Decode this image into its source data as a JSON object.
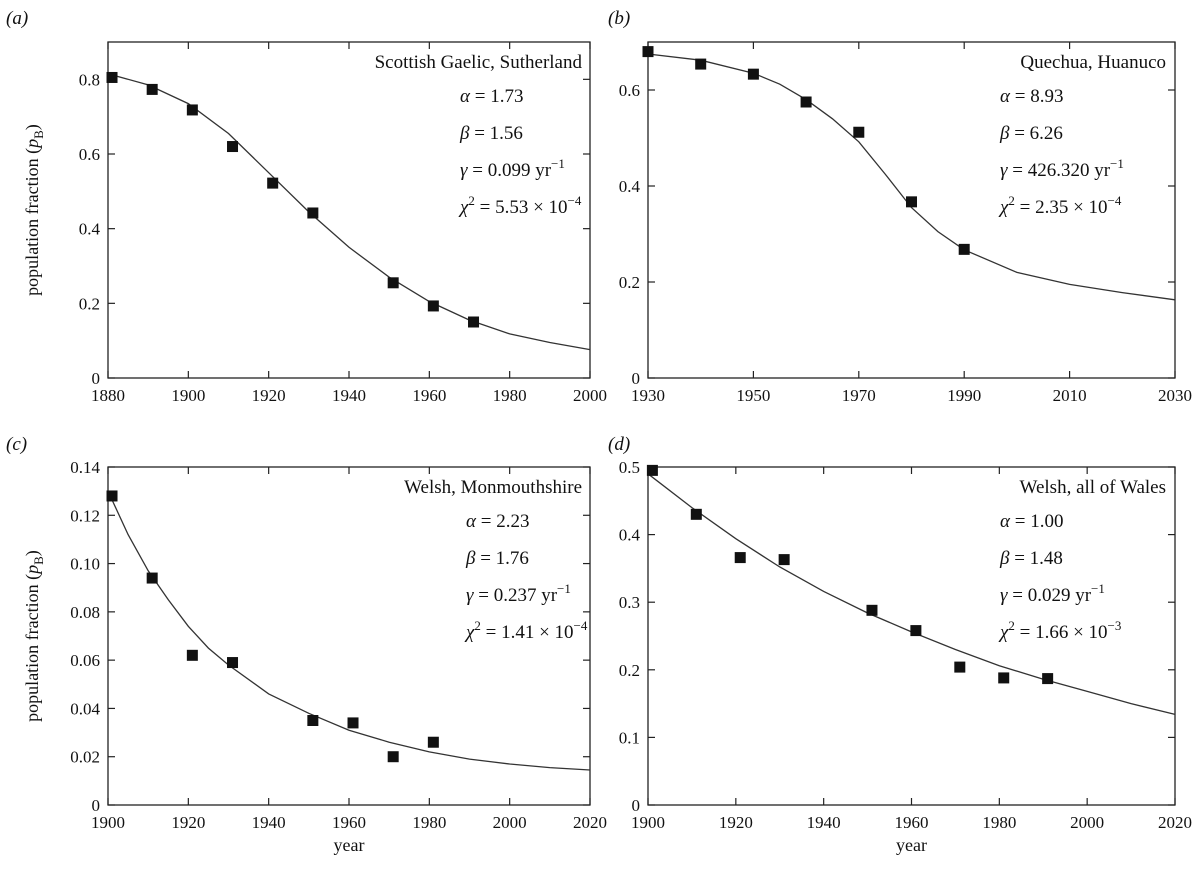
{
  "chart_data": [
    {
      "type": "scatter",
      "panel_label": "(a)",
      "title": "Scottish Gaelic, Sutherland",
      "xlabel": "",
      "ylabel": "population fraction (p_B)",
      "ylabel_text": "population fraction (",
      "ylabel_var": "p",
      "ylabel_sub": "B",
      "ylabel_close": ")",
      "xlim": [
        1880,
        2000
      ],
      "ylim": [
        0,
        0.9
      ],
      "xticks": [
        1880,
        1900,
        1920,
        1940,
        1960,
        1980,
        2000
      ],
      "xtick_labels": [
        "1880",
        "1900",
        "1920",
        "1940",
        "1960",
        "1980",
        "2000"
      ],
      "yticks": [
        0,
        0.2,
        0.4,
        0.6,
        0.8
      ],
      "ytick_labels": [
        "0",
        "0.2",
        "0.4",
        "0.6",
        "0.8"
      ],
      "series": [
        {
          "x": [
            1881,
            1891,
            1901,
            1911,
            1921,
            1931,
            1951,
            1961,
            1971
          ],
          "y": [
            0.805,
            0.773,
            0.718,
            0.62,
            0.522,
            0.442,
            0.255,
            0.193,
            0.15
          ]
        }
      ],
      "fit_curve": {
        "x": [
          1880,
          1890,
          1900,
          1910,
          1920,
          1930,
          1940,
          1950,
          1960,
          1970,
          1980,
          1990,
          2000
        ],
        "y": [
          0.815,
          0.785,
          0.735,
          0.655,
          0.55,
          0.445,
          0.35,
          0.27,
          0.205,
          0.155,
          0.118,
          0.095,
          0.076
        ]
      },
      "params": [
        {
          "sym": "α",
          "rest": " = 1.73",
          "sup": ""
        },
        {
          "sym": "β",
          "rest": " = 1.56",
          "sup": ""
        },
        {
          "sym": "γ",
          "rest": " = 0.099 yr",
          "sup": "−1"
        },
        {
          "sym": "χ",
          "rest": "",
          "sup": "2",
          "after": " = 5.53 × 10",
          "sup2": "−4"
        }
      ]
    },
    {
      "type": "scatter",
      "panel_label": "(b)",
      "title": "Quechua, Huanuco",
      "xlabel": "",
      "ylabel": "",
      "xlim": [
        1930,
        2030
      ],
      "ylim": [
        0,
        0.7
      ],
      "xticks": [
        1930,
        1950,
        1970,
        1990,
        2010,
        2030
      ],
      "xtick_labels": [
        "1930",
        "1950",
        "1970",
        "1990",
        "2010",
        "2030"
      ],
      "yticks": [
        0,
        0.2,
        0.4,
        0.6
      ],
      "ytick_labels": [
        "0",
        "0.2",
        "0.4",
        "0.6"
      ],
      "series": [
        {
          "x": [
            1930,
            1940,
            1950,
            1960,
            1970,
            1980,
            1990
          ],
          "y": [
            0.68,
            0.654,
            0.633,
            0.575,
            0.512,
            0.367,
            0.268
          ]
        }
      ],
      "fit_curve": {
        "x": [
          1930,
          1940,
          1950,
          1955,
          1960,
          1965,
          1970,
          1975,
          1980,
          1985,
          1990,
          2000,
          2010,
          2020,
          2030
        ],
        "y": [
          0.675,
          0.662,
          0.635,
          0.612,
          0.58,
          0.54,
          0.492,
          0.425,
          0.355,
          0.305,
          0.267,
          0.22,
          0.195,
          0.178,
          0.163
        ]
      },
      "params": [
        {
          "sym": "α",
          "rest": " = 8.93",
          "sup": ""
        },
        {
          "sym": "β",
          "rest": " = 6.26",
          "sup": ""
        },
        {
          "sym": "γ",
          "rest": " = 426.320 yr",
          "sup": "−1"
        },
        {
          "sym": "χ",
          "rest": "",
          "sup": "2",
          "after": " = 2.35 × 10",
          "sup2": "−4"
        }
      ]
    },
    {
      "type": "scatter",
      "panel_label": "(c)",
      "title": "Welsh, Monmouthshire",
      "xlabel": "year",
      "ylabel": "population fraction (p_B)",
      "ylabel_text": "population fraction (",
      "ylabel_var": "p",
      "ylabel_sub": "B",
      "ylabel_close": ")",
      "xlim": [
        1900,
        2020
      ],
      "ylim": [
        0,
        0.14
      ],
      "xticks": [
        1900,
        1920,
        1940,
        1960,
        1980,
        2000,
        2020
      ],
      "xtick_labels": [
        "1900",
        "1920",
        "1940",
        "1960",
        "1980",
        "2000",
        "2020"
      ],
      "yticks": [
        0,
        0.02,
        0.04,
        0.06,
        0.08,
        0.1,
        0.12,
        0.14
      ],
      "ytick_labels": [
        "0",
        "0.02",
        "0.04",
        "0.06",
        "0.08",
        "0.10",
        "0.12",
        "0.14"
      ],
      "series": [
        {
          "x": [
            1901,
            1911,
            1921,
            1931,
            1951,
            1961,
            1971,
            1981
          ],
          "y": [
            0.128,
            0.094,
            0.062,
            0.059,
            0.035,
            0.034,
            0.02,
            0.026
          ]
        }
      ],
      "fit_curve": {
        "x": [
          1900,
          1905,
          1910,
          1915,
          1920,
          1925,
          1930,
          1940,
          1950,
          1960,
          1970,
          1980,
          1990,
          2000,
          2010,
          2020
        ],
        "y": [
          0.13,
          0.112,
          0.097,
          0.085,
          0.074,
          0.065,
          0.058,
          0.046,
          0.038,
          0.031,
          0.026,
          0.022,
          0.019,
          0.017,
          0.0155,
          0.0145
        ]
      },
      "params": [
        {
          "sym": "α",
          "rest": " = 2.23",
          "sup": ""
        },
        {
          "sym": "β",
          "rest": " = 1.76",
          "sup": ""
        },
        {
          "sym": "γ",
          "rest": " = 0.237 yr",
          "sup": "−1"
        },
        {
          "sym": "χ",
          "rest": "",
          "sup": "2",
          "after": " = 1.41 × 10",
          "sup2": "−4"
        }
      ]
    },
    {
      "type": "scatter",
      "panel_label": "(d)",
      "title": "Welsh, all of Wales",
      "xlabel": "year",
      "ylabel": "",
      "xlim": [
        1900,
        2020
      ],
      "ylim": [
        0,
        0.5
      ],
      "xticks": [
        1900,
        1920,
        1940,
        1960,
        1980,
        2000,
        2020
      ],
      "xtick_labels": [
        "1900",
        "1920",
        "1940",
        "1960",
        "1980",
        "2000",
        "2020"
      ],
      "yticks": [
        0,
        0.1,
        0.2,
        0.3,
        0.4,
        0.5
      ],
      "ytick_labels": [
        "0",
        "0.1",
        "0.2",
        "0.3",
        "0.4",
        "0.5"
      ],
      "series": [
        {
          "x": [
            1901,
            1911,
            1921,
            1931,
            1951,
            1961,
            1971,
            1981,
            1991
          ],
          "y": [
            0.495,
            0.43,
            0.366,
            0.363,
            0.288,
            0.258,
            0.204,
            0.188,
            0.187
          ]
        }
      ],
      "fit_curve": {
        "x": [
          1900,
          1910,
          1920,
          1930,
          1940,
          1950,
          1960,
          1970,
          1980,
          1990,
          2000,
          2010,
          2020
        ],
        "y": [
          0.49,
          0.44,
          0.394,
          0.352,
          0.316,
          0.284,
          0.256,
          0.23,
          0.206,
          0.186,
          0.168,
          0.15,
          0.134
        ]
      },
      "params": [
        {
          "sym": "α",
          "rest": " = 1.00",
          "sup": ""
        },
        {
          "sym": "β",
          "rest": " = 1.48",
          "sup": ""
        },
        {
          "sym": "γ",
          "rest": " = 0.029 yr",
          "sup": "−1"
        },
        {
          "sym": "χ",
          "rest": "",
          "sup": "2",
          "after": " = 1.66 × 10",
          "sup2": "−3"
        }
      ]
    }
  ]
}
